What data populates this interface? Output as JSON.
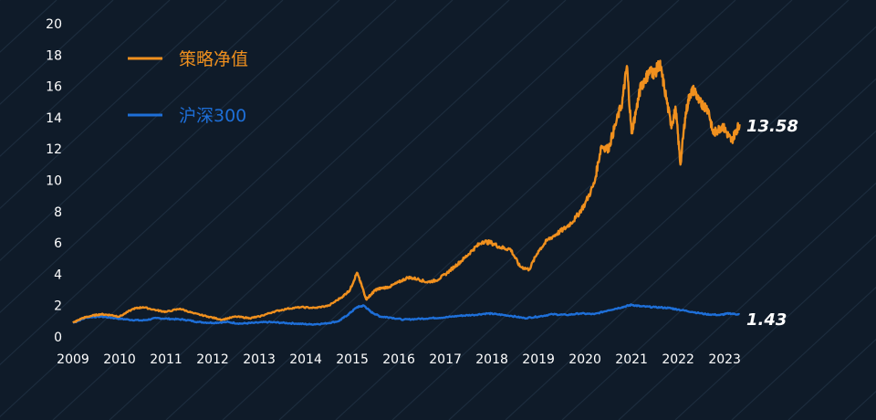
{
  "colors": {
    "background": "#0f1b29",
    "strategy": "#f0901e",
    "index": "#1e6fd8",
    "stripes": "#1c2c3d",
    "text": "#ffffff"
  },
  "chart_data": {
    "type": "line",
    "title": "",
    "xlabel": "",
    "ylabel": "",
    "xlim": [
      2009.0,
      2023.35
    ],
    "ylim": [
      0,
      20
    ],
    "grid": false,
    "legend_position": "top-left",
    "y_ticks": [
      "0",
      "2",
      "4",
      "6",
      "8",
      "10",
      "12",
      "14",
      "16",
      "18",
      "20"
    ],
    "x_ticks": [
      "2009",
      "2010",
      "2011",
      "2012",
      "2013",
      "2014",
      "2015",
      "2016",
      "2017",
      "2018",
      "2019",
      "2020",
      "2021",
      "2022",
      "2023"
    ],
    "series": [
      {
        "name": "策略净值",
        "color": "#f0901e",
        "end_label": "13.58",
        "x": [
          2009.0,
          2009.2,
          2009.4,
          2009.6,
          2009.8,
          2010.0,
          2010.3,
          2010.5,
          2010.8,
          2011.0,
          2011.3,
          2011.6,
          2011.9,
          2012.2,
          2012.5,
          2012.8,
          2013.0,
          2013.3,
          2013.6,
          2013.9,
          2014.2,
          2014.5,
          2014.8,
          2014.95,
          2015.1,
          2015.2,
          2015.3,
          2015.4,
          2015.5,
          2015.6,
          2015.8,
          2016.0,
          2016.2,
          2016.4,
          2016.6,
          2016.8,
          2017.0,
          2017.2,
          2017.4,
          2017.6,
          2017.8,
          2018.0,
          2018.2,
          2018.4,
          2018.6,
          2018.8,
          2019.0,
          2019.2,
          2019.4,
          2019.6,
          2019.8,
          2020.0,
          2020.2,
          2020.35,
          2020.5,
          2020.65,
          2020.8,
          2020.9,
          2021.0,
          2021.1,
          2021.2,
          2021.3,
          2021.4,
          2021.5,
          2021.6,
          2021.7,
          2021.85,
          2021.95,
          2022.05,
          2022.15,
          2022.25,
          2022.35,
          2022.45,
          2022.55,
          2022.65,
          2022.75,
          2022.85,
          2022.95,
          2023.05,
          2023.15,
          2023.25,
          2023.32
        ],
        "y": [
          0.9,
          1.2,
          1.35,
          1.45,
          1.4,
          1.3,
          1.8,
          1.9,
          1.7,
          1.6,
          1.8,
          1.5,
          1.3,
          1.1,
          1.3,
          1.2,
          1.3,
          1.6,
          1.8,
          1.9,
          1.85,
          2.0,
          2.6,
          3.0,
          4.1,
          3.3,
          2.4,
          2.7,
          3.0,
          3.1,
          3.2,
          3.5,
          3.8,
          3.7,
          3.5,
          3.6,
          4.0,
          4.5,
          5.0,
          5.6,
          6.1,
          6.0,
          5.7,
          5.6,
          4.5,
          4.3,
          5.5,
          6.2,
          6.6,
          7.0,
          7.6,
          8.5,
          9.8,
          12.2,
          12.0,
          13.5,
          15.0,
          17.3,
          13.0,
          14.5,
          16.0,
          16.5,
          17.0,
          16.8,
          17.5,
          16.0,
          13.5,
          14.5,
          11.0,
          14.0,
          15.5,
          15.8,
          15.0,
          14.8,
          14.5,
          13.0,
          13.2,
          13.5,
          13.0,
          12.5,
          13.2,
          13.58
        ]
      },
      {
        "name": "沪深300",
        "color": "#1e6fd8",
        "end_label": "1.43",
        "x": [
          2009.0,
          2009.3,
          2009.6,
          2009.9,
          2010.2,
          2010.5,
          2010.8,
          2011.1,
          2011.4,
          2011.7,
          2012.0,
          2012.3,
          2012.6,
          2012.9,
          2013.2,
          2013.5,
          2013.8,
          2014.1,
          2014.4,
          2014.7,
          2014.9,
          2015.1,
          2015.25,
          2015.4,
          2015.6,
          2015.8,
          2016.1,
          2016.4,
          2016.7,
          2017.0,
          2017.3,
          2017.6,
          2017.9,
          2018.1,
          2018.4,
          2018.7,
          2019.0,
          2019.3,
          2019.6,
          2019.9,
          2020.2,
          2020.5,
          2020.8,
          2021.0,
          2021.2,
          2021.5,
          2021.8,
          2022.0,
          2022.3,
          2022.6,
          2022.9,
          2023.1,
          2023.32
        ],
        "y": [
          0.9,
          1.25,
          1.3,
          1.2,
          1.1,
          1.05,
          1.2,
          1.15,
          1.1,
          0.95,
          0.9,
          0.95,
          0.85,
          0.9,
          0.95,
          0.9,
          0.85,
          0.8,
          0.85,
          1.0,
          1.4,
          1.9,
          2.0,
          1.6,
          1.3,
          1.25,
          1.1,
          1.15,
          1.2,
          1.25,
          1.35,
          1.4,
          1.5,
          1.45,
          1.35,
          1.2,
          1.3,
          1.45,
          1.4,
          1.5,
          1.45,
          1.7,
          1.9,
          2.05,
          1.95,
          1.9,
          1.85,
          1.75,
          1.6,
          1.45,
          1.4,
          1.5,
          1.43
        ]
      }
    ]
  }
}
